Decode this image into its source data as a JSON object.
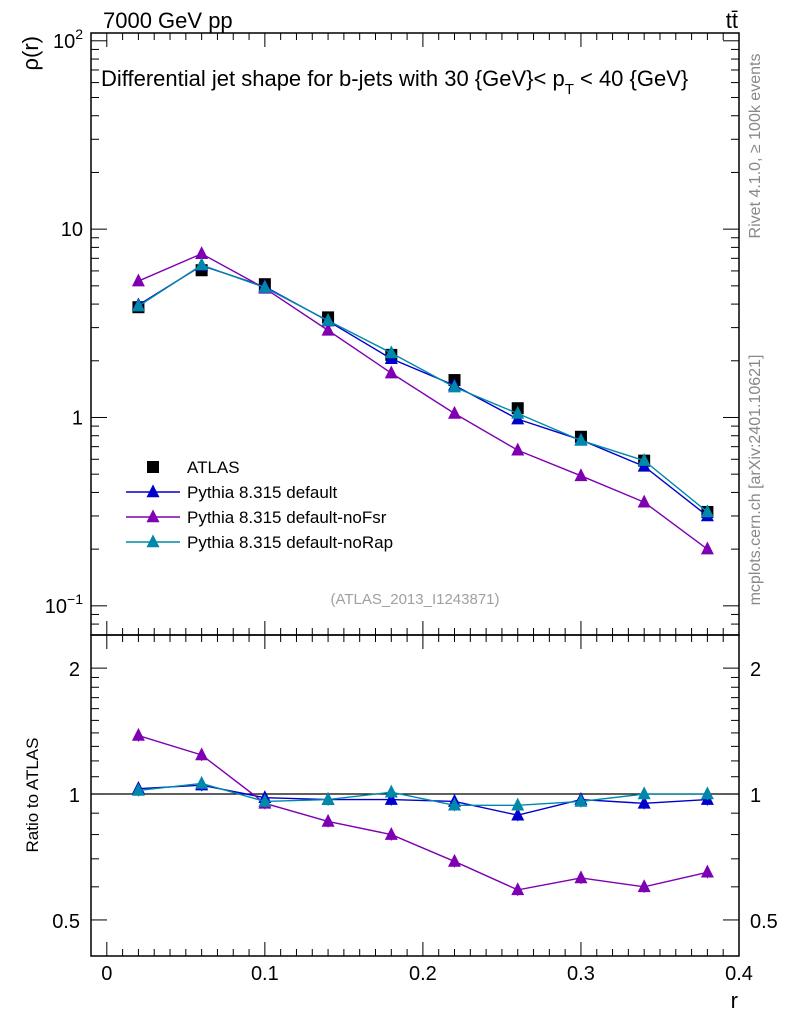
{
  "header": {
    "left": "7000 GeV pp",
    "right": "tt̄"
  },
  "side_labels": {
    "top": "Rivet 4.1.0, ≥ 100k events",
    "bottom": "mcplots.cern.ch [arXiv:2401.10621]"
  },
  "analysis_tag": "(ATLAS_2013_I1243871)",
  "chart_data": [
    {
      "type": "line",
      "scale": "log",
      "title": "Differential jet shape for b-jets with 30 {GeV}< p_T < 40 {GeV}",
      "title_parts": {
        "pre": "Differential jet shape for b-jets with 30 {GeV}< p",
        "sub": "T",
        "post": " < 40 {GeV}"
      },
      "ylabel": "ρ(r)",
      "xlim": [
        -0.01,
        0.4
      ],
      "ylim": [
        0.07,
        110
      ],
      "y_tick_labels": [
        {
          "value": 100,
          "base": "10",
          "exp": "2"
        },
        {
          "value": 10,
          "base": "10",
          "exp": ""
        },
        {
          "value": 1,
          "base": "1",
          "exp": ""
        },
        {
          "value": 0.1,
          "base": "10",
          "exp": "−1"
        }
      ],
      "x": [
        0.02,
        0.06,
        0.1,
        0.14,
        0.18,
        0.22,
        0.26,
        0.3,
        0.34,
        0.38
      ],
      "series": [
        {
          "name": "ATLAS",
          "color": "#000000",
          "marker": "square",
          "values": [
            3.85,
            6.05,
            5.1,
            3.4,
            2.15,
            1.58,
            1.12,
            0.79,
            0.59,
            0.315
          ]
        },
        {
          "name": "Pythia 8.315 default",
          "color": "#0000cc",
          "marker": "triangle",
          "values": [
            3.95,
            6.4,
            4.95,
            3.25,
            2.05,
            1.48,
            0.98,
            0.76,
            0.55,
            0.3
          ]
        },
        {
          "name": "Pythia 8.315 default-noFsr",
          "color": "#7f00b3",
          "marker": "triangle",
          "values": [
            5.3,
            7.4,
            4.85,
            2.9,
            1.72,
            1.05,
            0.67,
            0.49,
            0.355,
            0.2
          ]
        },
        {
          "name": "Pythia 8.315 default-noRap",
          "color": "#0088aa",
          "marker": "triangle",
          "values": [
            3.9,
            6.45,
            4.9,
            3.27,
            2.2,
            1.45,
            1.05,
            0.755,
            0.59,
            0.315
          ]
        }
      ],
      "legend_position": "lower-left"
    },
    {
      "type": "line",
      "scale": "log",
      "ylabel": "Ratio to ATLAS",
      "xlabel": "r",
      "xlim": [
        -0.01,
        0.4
      ],
      "ylim": [
        0.41,
        2.4
      ],
      "reference_line": 1,
      "y_tick_labels": [
        {
          "value": 2,
          "label": "2"
        },
        {
          "value": 1,
          "label": "1"
        },
        {
          "value": 0.5,
          "label": "0.5"
        }
      ],
      "x_tick_labels": [
        {
          "value": 0,
          "label": "0"
        },
        {
          "value": 0.1,
          "label": "0.1"
        },
        {
          "value": 0.2,
          "label": "0.2"
        },
        {
          "value": 0.3,
          "label": "0.3"
        },
        {
          "value": 0.4,
          "label": "0.4"
        }
      ],
      "x": [
        0.02,
        0.06,
        0.1,
        0.14,
        0.18,
        0.22,
        0.26,
        0.3,
        0.34,
        0.38
      ],
      "series": [
        {
          "name": "Pythia 8.315 default",
          "color": "#0000cc",
          "values": [
            1.03,
            1.05,
            0.98,
            0.97,
            0.97,
            0.96,
            0.89,
            0.97,
            0.95,
            0.97
          ]
        },
        {
          "name": "Pythia 8.315 default-noFsr",
          "color": "#7f00b3",
          "values": [
            1.38,
            1.24,
            0.95,
            0.86,
            0.8,
            0.69,
            0.59,
            0.63,
            0.6,
            0.65
          ]
        },
        {
          "name": "Pythia 8.315 default-noRap",
          "color": "#0088aa",
          "values": [
            1.02,
            1.06,
            0.96,
            0.97,
            1.01,
            0.94,
            0.94,
            0.96,
            1.0,
            1.0
          ]
        }
      ]
    }
  ]
}
